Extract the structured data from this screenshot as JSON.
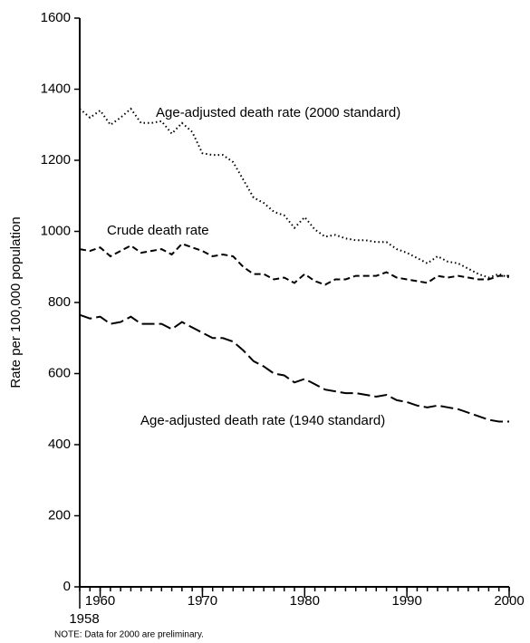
{
  "chart_data": {
    "type": "line",
    "y_label": "Rate per 100,000 population",
    "note": "NOTE: Data for 2000 are preliminary.",
    "x": [
      1958,
      1959,
      1960,
      1961,
      1962,
      1963,
      1964,
      1965,
      1966,
      1967,
      1968,
      1969,
      1970,
      1971,
      1972,
      1973,
      1974,
      1975,
      1976,
      1977,
      1978,
      1979,
      1980,
      1981,
      1982,
      1983,
      1984,
      1985,
      1986,
      1987,
      1988,
      1989,
      1990,
      1991,
      1992,
      1993,
      1994,
      1995,
      1996,
      1997,
      1998,
      1999,
      2000
    ],
    "xlim": [
      1958,
      2000
    ],
    "xticks": [
      1958,
      1960,
      1970,
      1980,
      1990,
      2000
    ],
    "ylim": [
      0,
      1600
    ],
    "yticks": [
      0,
      200,
      400,
      600,
      800,
      1000,
      1200,
      1400,
      1600
    ],
    "series": [
      {
        "name": "Age-adjusted death rate (2000 standard)",
        "color": "#000000",
        "dash": "dotted",
        "values": [
          1345,
          1320,
          1340,
          1300,
          1320,
          1345,
          1305,
          1305,
          1310,
          1275,
          1305,
          1280,
          1220,
          1215,
          1215,
          1195,
          1145,
          1095,
          1080,
          1055,
          1045,
          1010,
          1040,
          1005,
          985,
          990,
          980,
          975,
          975,
          970,
          970,
          950,
          940,
          925,
          910,
          930,
          915,
          910,
          895,
          880,
          870,
          880,
          870
        ]
      },
      {
        "name": "Crude death rate",
        "color": "#000000",
        "dash": "dashed",
        "values": [
          950,
          945,
          955,
          930,
          945,
          960,
          940,
          945,
          950,
          935,
          965,
          955,
          945,
          930,
          935,
          930,
          900,
          880,
          880,
          865,
          870,
          855,
          880,
          860,
          850,
          865,
          865,
          875,
          875,
          875,
          885,
          870,
          865,
          860,
          855,
          875,
          870,
          875,
          870,
          865,
          865,
          875,
          875
        ]
      },
      {
        "name": "Age-adjusted death rate (1940 standard)",
        "color": "#000000",
        "dash": "longdash",
        "values": [
          765,
          755,
          760,
          740,
          745,
          760,
          740,
          740,
          740,
          725,
          745,
          730,
          715,
          700,
          700,
          690,
          665,
          635,
          620,
          600,
          595,
          575,
          585,
          570,
          555,
          550,
          545,
          545,
          540,
          535,
          540,
          525,
          520,
          510,
          505,
          510,
          505,
          500,
          490,
          480,
          470,
          465,
          465
        ]
      }
    ]
  }
}
